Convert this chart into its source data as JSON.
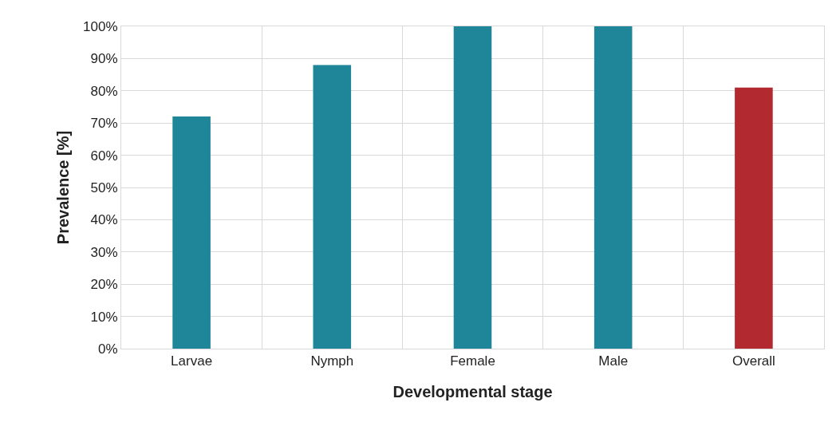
{
  "chart_data": {
    "type": "bar",
    "xlabel": "Developmental stage",
    "ylabel": "Prevalence [%]",
    "categories": [
      "Larvae",
      "Nymph",
      "Female",
      "Male",
      "Overall"
    ],
    "values": [
      72,
      88,
      100,
      100,
      81
    ],
    "colors": [
      "#1f8599",
      "#1f8599",
      "#1f8599",
      "#1f8599",
      "#b22a30"
    ],
    "ylim": [
      0,
      100
    ],
    "yticks": [
      {
        "value": 0,
        "label": "0%"
      },
      {
        "value": 10,
        "label": "10%"
      },
      {
        "value": 20,
        "label": "20%"
      },
      {
        "value": 30,
        "label": "30%"
      },
      {
        "value": 40,
        "label": "40%"
      },
      {
        "value": 50,
        "label": "50%"
      },
      {
        "value": 60,
        "label": "60%"
      },
      {
        "value": 70,
        "label": "70%"
      },
      {
        "value": 80,
        "label": "80%"
      },
      {
        "value": 90,
        "label": "90%"
      },
      {
        "value": 100,
        "label": "100%"
      }
    ],
    "grid": true,
    "legend": false
  }
}
